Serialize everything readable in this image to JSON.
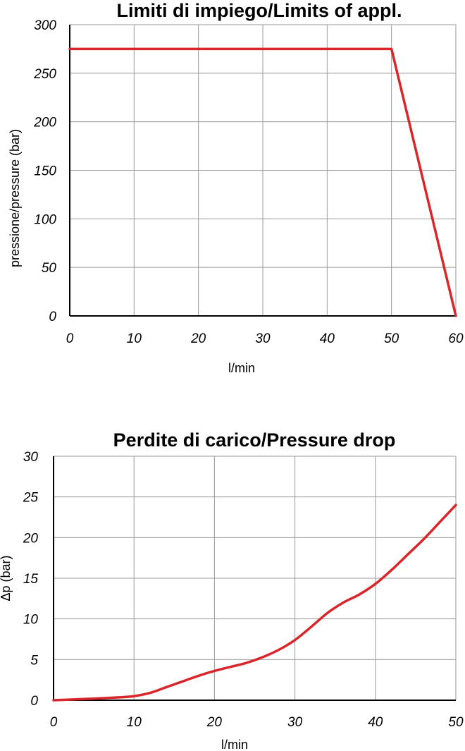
{
  "chart_data": [
    {
      "type": "line",
      "title": "Limiti di impiego/Limits of appl.",
      "xlabel": "l/min",
      "ylabel": "pressione/pressure (bar)",
      "xlim": [
        0,
        60
      ],
      "ylim": [
        0,
        300
      ],
      "x_ticks": [
        "0",
        "10",
        "20",
        "30",
        "40",
        "50",
        "60"
      ],
      "y_ticks": [
        "0",
        "50",
        "100",
        "150",
        "200",
        "250",
        "300"
      ],
      "grid": true,
      "color": "#d9262b",
      "series": [
        {
          "x": [
            0,
            50,
            60
          ],
          "y": [
            275,
            275,
            0
          ]
        }
      ]
    },
    {
      "type": "line",
      "title": "Perdite di carico/Pressure drop",
      "xlabel": "l/min",
      "ylabel": "Δp (bar)",
      "xlim": [
        0,
        50
      ],
      "ylim": [
        0,
        30
      ],
      "x_ticks": [
        "0",
        "10",
        "20",
        "30",
        "40",
        "50"
      ],
      "y_ticks": [
        "0",
        "5",
        "10",
        "15",
        "20",
        "25",
        "30"
      ],
      "grid": true,
      "color": "#d9262b",
      "series": [
        {
          "x": [
            0,
            5,
            8,
            10,
            12,
            14,
            16,
            18,
            20,
            22,
            24,
            26,
            28,
            30,
            32,
            34,
            36,
            38,
            40,
            42,
            44,
            46,
            48,
            50
          ],
          "y": [
            0,
            0.2,
            0.35,
            0.5,
            0.9,
            1.6,
            2.3,
            3.0,
            3.6,
            4.1,
            4.6,
            5.3,
            6.2,
            7.4,
            9.0,
            10.7,
            12.0,
            13.0,
            14.3,
            16.0,
            17.9,
            19.8,
            21.9,
            24.0
          ]
        }
      ]
    }
  ]
}
